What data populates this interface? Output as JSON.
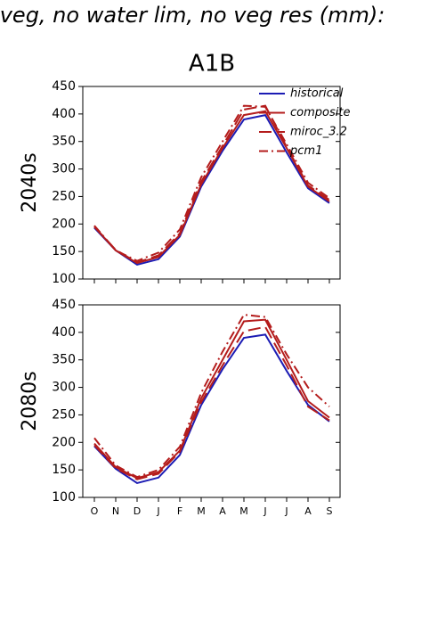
{
  "chart_data": [
    {
      "type": "line",
      "title": "f veg, no water lim, no veg res (mm):",
      "subtitle": "A1B",
      "y_label": "2040s",
      "ylim": [
        100,
        450
      ],
      "yticks": [
        100,
        150,
        200,
        250,
        300,
        350,
        400,
        450
      ],
      "legend": "upper right",
      "series": [
        {
          "name": "historical",
          "color": "#1c1cb4",
          "style": "solid",
          "values": [
            193,
            152,
            126,
            136,
            177,
            268,
            333,
            390,
            398,
            330,
            265,
            238
          ]
        },
        {
          "name": "composite",
          "color": "#b41c1c",
          "style": "solid",
          "values": [
            195,
            152,
            129,
            140,
            180,
            272,
            338,
            398,
            405,
            338,
            268,
            241
          ]
        },
        {
          "name": "miroc_3.2",
          "color": "#b41c1c",
          "style": "dashed",
          "values": [
            195,
            153,
            130,
            143,
            183,
            277,
            342,
            408,
            415,
            340,
            270,
            244
          ]
        },
        {
          "name": "pcm1",
          "color": "#b41c1c",
          "style": "dashdot",
          "values": [
            197,
            152,
            133,
            148,
            190,
            285,
            350,
            415,
            413,
            345,
            275,
            247
          ]
        }
      ]
    },
    {
      "type": "line",
      "y_label": "2080s",
      "categories": [
        "O",
        "N",
        "D",
        "J",
        "F",
        "M",
        "A",
        "M",
        "J",
        "J",
        "A",
        "S"
      ],
      "ylim": [
        100,
        450
      ],
      "yticks": [
        100,
        150,
        200,
        250,
        300,
        350,
        400,
        450
      ],
      "series": [
        {
          "color": "#1c1cb4",
          "style": "solid",
          "values": [
            193,
            152,
            126,
            136,
            177,
            268,
            333,
            390,
            396,
            330,
            268,
            238
          ]
        },
        {
          "color": "#b41c1c",
          "style": "solid",
          "values": [
            198,
            155,
            135,
            146,
            185,
            280,
            350,
            420,
            423,
            350,
            275,
            245
          ]
        },
        {
          "color": "#b41c1c",
          "style": "dashed",
          "values": [
            195,
            153,
            133,
            143,
            183,
            273,
            340,
            402,
            410,
            340,
            265,
            240
          ]
        },
        {
          "color": "#b41c1c",
          "style": "dashdot",
          "values": [
            208,
            158,
            137,
            150,
            192,
            290,
            365,
            432,
            428,
            360,
            300,
            265
          ]
        }
      ]
    }
  ]
}
